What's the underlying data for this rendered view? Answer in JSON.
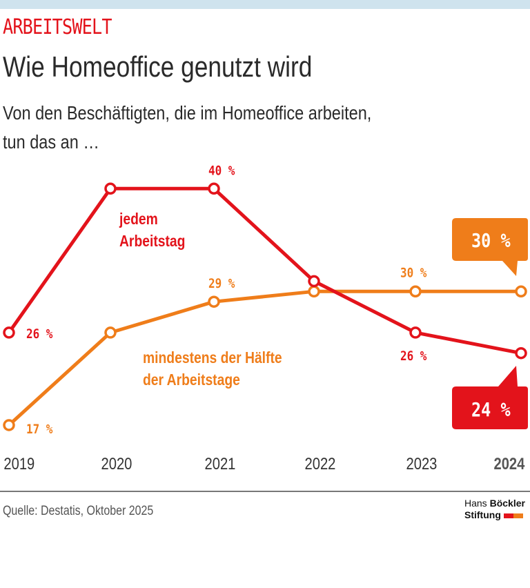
{
  "header": {
    "kicker": "ARBEITSWELT",
    "title": "Wie Homeoffice genutzt wird",
    "subtitle_line1": "Von den Beschäftigten, die im Homeoffice arbeiten,",
    "subtitle_line2": "tun das an …"
  },
  "chart_data": {
    "type": "line",
    "title": "Wie Homeoffice genutzt wird",
    "x": [
      "2019",
      "2020",
      "2021",
      "2022",
      "2023",
      "2024"
    ],
    "highlight_x": "2024",
    "unit": "%",
    "grid": false,
    "series": [
      {
        "name_line1": "jedem",
        "name_line2": "Arbeitstag",
        "color": "#e3131b",
        "values": [
          26,
          40,
          40,
          31,
          26,
          24
        ],
        "data_labels": [
          "26 %",
          "",
          "40 %",
          "",
          "26 %",
          ""
        ],
        "callout": "24 %"
      },
      {
        "name_line1": "mindestens der Hälfte",
        "name_line2": "der Arbeitstage",
        "color": "#ef7d1a",
        "values": [
          17,
          26,
          29,
          30,
          30,
          30
        ],
        "data_labels": [
          "17 %",
          "",
          "29 %",
          "",
          "30 %",
          ""
        ],
        "callout": "30 %"
      }
    ]
  },
  "footer": {
    "source": "Quelle: Destatis, Oktober 2025",
    "logo_line1_light": "Hans",
    "logo_line1_bold": "Böckler",
    "logo_line2": "Stiftung"
  }
}
